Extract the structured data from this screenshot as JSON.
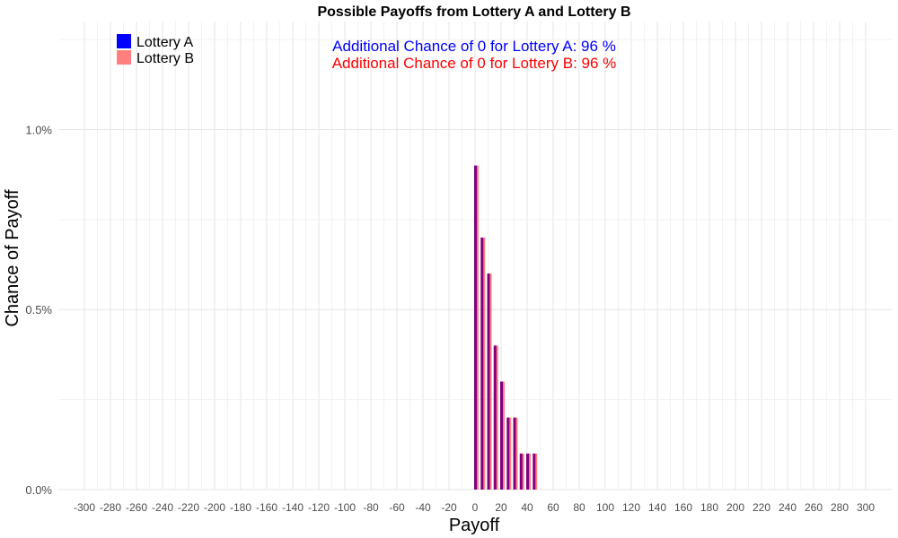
{
  "chart_data": {
    "type": "bar",
    "title": "Possible Payoffs from Lottery A and Lottery B",
    "xlabel": "Payoff",
    "ylabel": "Chance of Payoff",
    "xlim": [
      -320,
      320
    ],
    "ylim": [
      0,
      1.3
    ],
    "x_ticks": [
      -300,
      -280,
      -260,
      -240,
      -220,
      -200,
      -180,
      -160,
      -140,
      -120,
      -100,
      -80,
      -60,
      -40,
      -20,
      0,
      20,
      40,
      60,
      80,
      100,
      120,
      140,
      160,
      180,
      200,
      220,
      240,
      260,
      280,
      300
    ],
    "y_ticks": [
      {
        "value": 0.0,
        "label": "0.0%"
      },
      {
        "value": 0.5,
        "label": "0.5%"
      },
      {
        "value": 1.0,
        "label": "1.0%"
      }
    ],
    "grid": true,
    "legend_position": "top-left",
    "series": [
      {
        "name": "Lottery A",
        "color": "#0000ff",
        "x": [
          0,
          5,
          10,
          15,
          20,
          25,
          30,
          35,
          40,
          45
        ],
        "values": [
          0.9,
          0.7,
          0.6,
          0.4,
          0.3,
          0.2,
          0.2,
          0.1,
          0.1,
          0.1
        ]
      },
      {
        "name": "Lottery B",
        "color": "#ff7f7f",
        "x": [
          0,
          5,
          10,
          15,
          20,
          25,
          30,
          35,
          40,
          45
        ],
        "values": [
          0.9,
          0.7,
          0.6,
          0.4,
          0.3,
          0.2,
          0.2,
          0.1,
          0.1,
          0.1
        ]
      }
    ],
    "overlap_color": "#800080",
    "annotations": [
      {
        "text": "Additional Chance of 0 for Lottery A:  96 %",
        "color": "#0000ff"
      },
      {
        "text": "Additional Chance of 0 for Lottery B:  96 %",
        "color": "#ff0000"
      }
    ]
  }
}
